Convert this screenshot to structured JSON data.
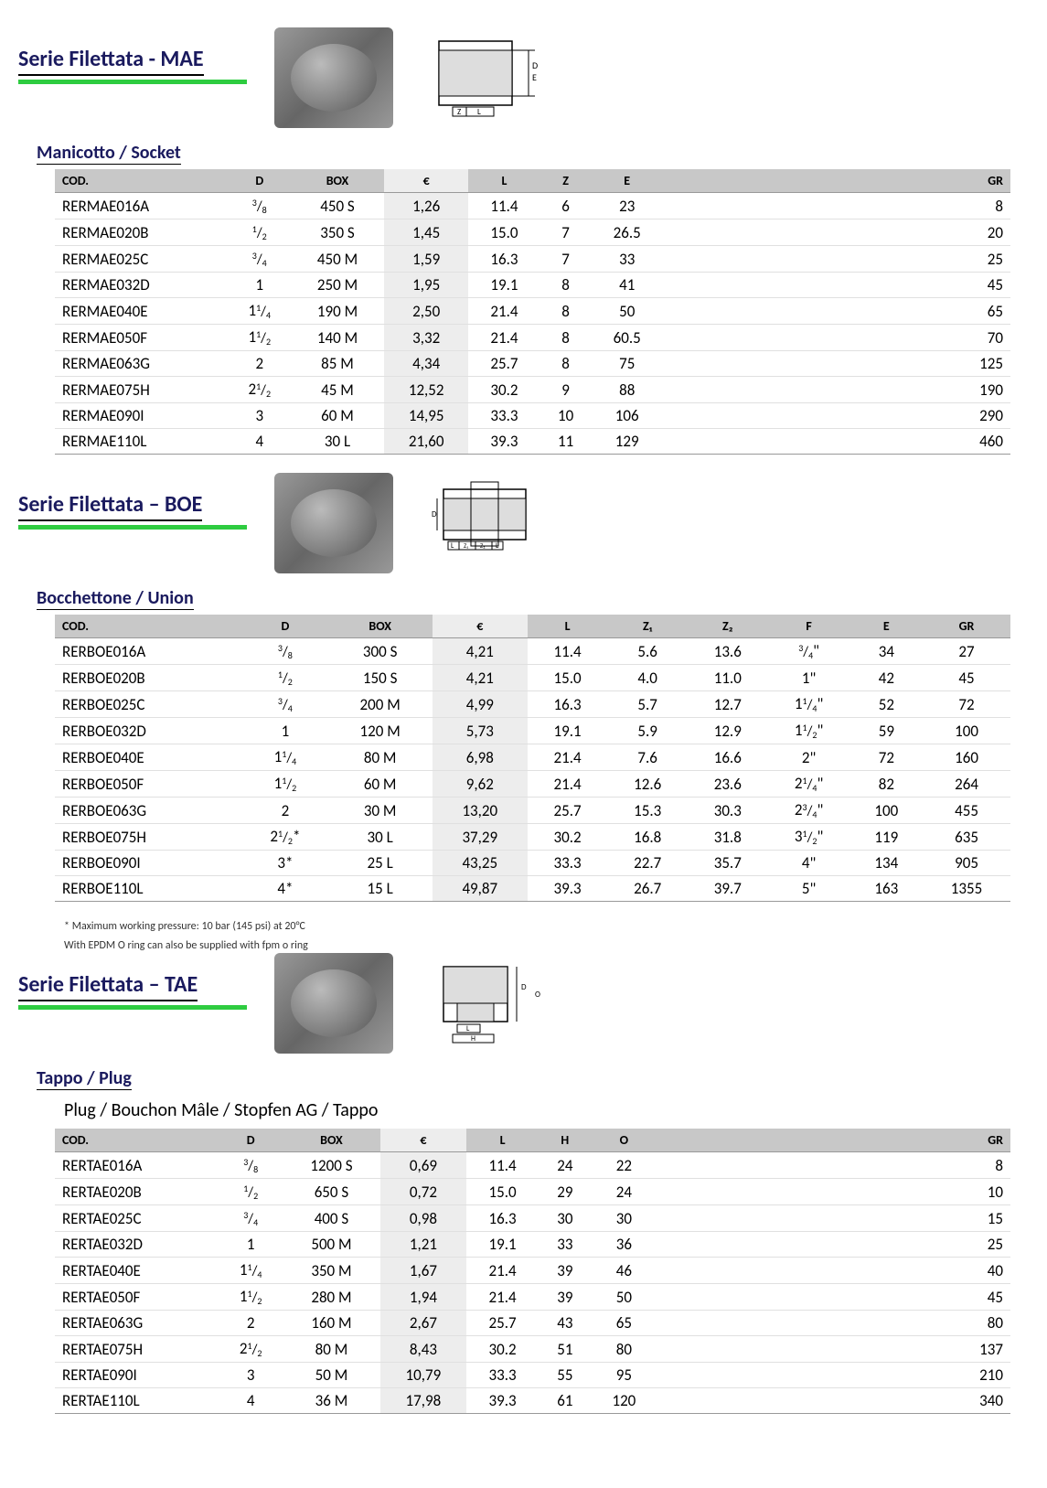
{
  "colors": {
    "accent": "#2ecc40",
    "title": "#1a1a5e",
    "header_bg": "#c8c8c8",
    "euro_bg": "#ededed"
  },
  "typography": {
    "title_fontsize": 24,
    "body_fontsize": 17,
    "header_fontsize": 14
  },
  "s1": {
    "title": "Serie Filettata - MAE",
    "subtitle": "Manicotto / Socket",
    "columns": [
      "COD.",
      "D",
      "BOX",
      "€",
      "L",
      "Z",
      "E",
      "GR"
    ],
    "column_align": [
      "left",
      "center",
      "center",
      "center",
      "center",
      "center",
      "center",
      "right"
    ],
    "rows": [
      [
        "RERMAE016A",
        "3/8",
        "450 S",
        "1,26",
        "11.4",
        "6",
        "23",
        "8"
      ],
      [
        "RERMAE020B",
        "1/2",
        "350 S",
        "1,45",
        "15.0",
        "7",
        "26.5",
        "20"
      ],
      [
        "RERMAE025C",
        "3/4",
        "450 M",
        "1,59",
        "16.3",
        "7",
        "33",
        "25"
      ],
      [
        "RERMAE032D",
        "1",
        "250 M",
        "1,95",
        "19.1",
        "8",
        "41",
        "45"
      ],
      [
        "RERMAE040E",
        "1¹/₄",
        "190 M",
        "2,50",
        "21.4",
        "8",
        "50",
        "65"
      ],
      [
        "RERMAE050F",
        "1¹/₂",
        "140 M",
        "3,32",
        "21.4",
        "8",
        "60.5",
        "70"
      ],
      [
        "RERMAE063G",
        "2",
        "85 M",
        "4,34",
        "25.7",
        "8",
        "75",
        "125"
      ],
      [
        "RERMAE075H",
        "2¹/₂",
        "45 M",
        "12,52",
        "30.2",
        "9",
        "88",
        "190"
      ],
      [
        "RERMAE090I",
        "3",
        "60 M",
        "14,95",
        "33.3",
        "10",
        "106",
        "290"
      ],
      [
        "RERMAE110L",
        "4",
        "30 L",
        "21,60",
        "39.3",
        "11",
        "129",
        "460"
      ]
    ]
  },
  "s2": {
    "title": "Serie Filettata – BOE",
    "subtitle": "Bocchettone / Union",
    "columns": [
      "COD.",
      "D",
      "BOX",
      "€",
      "L",
      "Z₁",
      "Z₂",
      "F",
      "E",
      "GR"
    ],
    "column_align": [
      "left",
      "center",
      "center",
      "center",
      "center",
      "center",
      "center",
      "center",
      "center",
      "center"
    ],
    "rows": [
      [
        "RERBOE016A",
        "3/8",
        "300 S",
        "4,21",
        "11.4",
        "5.6",
        "13.6",
        "3/4\"",
        "34",
        "27"
      ],
      [
        "RERBOE020B",
        "1/2",
        "150 S",
        "4,21",
        "15.0",
        "4.0",
        "11.0",
        "1\"",
        "42",
        "45"
      ],
      [
        "RERBOE025C",
        "3/4",
        "200 M",
        "4,99",
        "16.3",
        "5.7",
        "12.7",
        "1¹/₄\"",
        "52",
        "72"
      ],
      [
        "RERBOE032D",
        "1",
        "120 M",
        "5,73",
        "19.1",
        "5.9",
        "12.9",
        "1¹/₂\"",
        "59",
        "100"
      ],
      [
        "RERBOE040E",
        "1¹/₄",
        "80 M",
        "6,98",
        "21.4",
        "7.6",
        "16.6",
        "2\"",
        "72",
        "160"
      ],
      [
        "RERBOE050F",
        "1¹/₂",
        "60 M",
        "9,62",
        "21.4",
        "12.6",
        "23.6",
        "2¹/₄\"",
        "82",
        "264"
      ],
      [
        "RERBOE063G",
        "2",
        "30 M",
        "13,20",
        "25.7",
        "15.3",
        "30.3",
        "2³/₄\"",
        "100",
        "455"
      ],
      [
        "RERBOE075H",
        "2¹/₂*",
        "30 L",
        "37,29",
        "30.2",
        "16.8",
        "31.8",
        "3¹/₂\"",
        "119",
        "635"
      ],
      [
        "RERBOE090I",
        "3*",
        "25 L",
        "43,25",
        "33.3",
        "22.7",
        "35.7",
        "4\"",
        "134",
        "905"
      ],
      [
        "RERBOE110L",
        "4*",
        "15 L",
        "49,87",
        "39.3",
        "26.7",
        "39.7",
        "5\"",
        "163",
        "1355"
      ]
    ],
    "footnote1": "* Maximum working pressure: 10 bar (145 psi) at 20°C",
    "footnote2": "With EPDM O ring can also be supplied with fpm o ring"
  },
  "s3": {
    "title": "Serie Filettata – TAE",
    "subtitle": "Tappo / Plug",
    "plug_label": "Plug / Bouchon Mâle / Stopfen AG / Tappo",
    "columns": [
      "COD.",
      "D",
      "BOX",
      "€",
      "L",
      "H",
      "O",
      "GR"
    ],
    "column_align": [
      "left",
      "center",
      "center",
      "center",
      "center",
      "center",
      "center",
      "right"
    ],
    "rows": [
      [
        "RERTAE016A",
        "3/8",
        "1200 S",
        "0,69",
        "11.4",
        "24",
        "22",
        "8"
      ],
      [
        "RERTAE020B",
        "1/2",
        "650 S",
        "0,72",
        "15.0",
        "29",
        "24",
        "10"
      ],
      [
        "RERTAE025C",
        "3/4",
        "400 S",
        "0,98",
        "16.3",
        "30",
        "30",
        "15"
      ],
      [
        "RERTAE032D",
        "1",
        "500 M",
        "1,21",
        "19.1",
        "33",
        "36",
        "25"
      ],
      [
        "RERTAE040E",
        "1¹/₄",
        "350 M",
        "1,67",
        "21.4",
        "39",
        "46",
        "40"
      ],
      [
        "RERTAE050F",
        "1¹/₂",
        "280 M",
        "1,94",
        "21.4",
        "39",
        "50",
        "45"
      ],
      [
        "RERTAE063G",
        "2",
        "160 M",
        "2,67",
        "25.7",
        "43",
        "65",
        "80"
      ],
      [
        "RERTAE075H",
        "2¹/₂",
        "80 M",
        "8,43",
        "30.2",
        "51",
        "80",
        "137"
      ],
      [
        "RERTAE090I",
        "3",
        "50 M",
        "10,79",
        "33.3",
        "55",
        "95",
        "210"
      ],
      [
        "RERTAE110L",
        "4",
        "36 M",
        "17,98",
        "39.3",
        "61",
        "120",
        "340"
      ]
    ]
  }
}
